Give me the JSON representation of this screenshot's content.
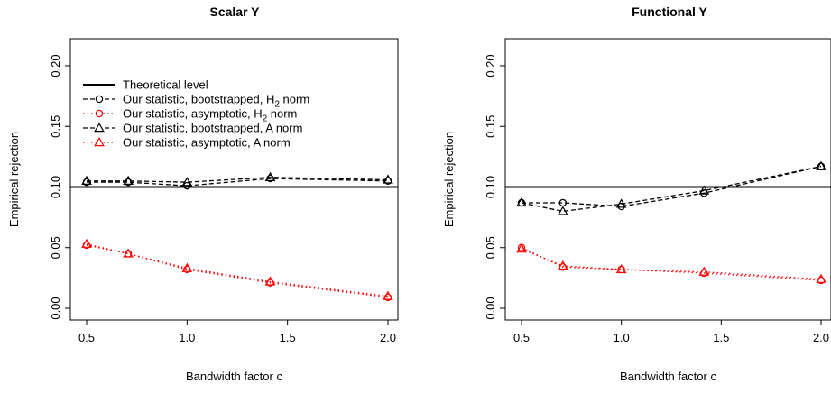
{
  "chart_data": [
    {
      "type": "line",
      "title": "Scalar Y",
      "xlabel": "Bandwidth factor c",
      "ylabel": "Empirical rejection",
      "xlim": [
        0.5,
        2.0
      ],
      "ylim": [
        0.0,
        0.2
      ],
      "xticks": [
        "0.5",
        "1.0",
        "1.5",
        "2.0"
      ],
      "yticks": [
        "0.00",
        "0.05",
        "0.10",
        "0.15",
        "0.20"
      ],
      "reference_line": {
        "name": "Theoretical level",
        "y": 0.1,
        "color": "#000000"
      },
      "legend": {
        "position": "top-left",
        "entries": [
          {
            "text": "Theoretical level",
            "style": "solid",
            "marker": "none",
            "color": "#000000"
          },
          {
            "text": "Our statistic,  bootstrapped,  H",
            "sub": "2",
            "tail": " norm",
            "style": "dashed",
            "marker": "circle",
            "color": "#000000"
          },
          {
            "text": "Our statistic,  asymptotic,  H",
            "sub": "2",
            "tail": " norm",
            "style": "dotted",
            "marker": "circle",
            "color": "#ff0000"
          },
          {
            "text": "Our statistic,  bootstrapped,   A norm",
            "sub": "",
            "tail": "",
            "style": "dashed",
            "marker": "triangle",
            "color": "#000000"
          },
          {
            "text": "Our statistic,  asymptotic,  A norm",
            "sub": "",
            "tail": "",
            "style": "dotted",
            "marker": "triangle",
            "color": "#ff0000"
          }
        ]
      },
      "x": [
        0.5,
        0.707,
        1.0,
        1.414,
        2.0
      ],
      "series": [
        {
          "name": "Our statistic, bootstrapped, H2 norm",
          "values": [
            0.104,
            0.104,
            0.101,
            0.107,
            0.105
          ],
          "style": "dashed",
          "marker": "circle",
          "color": "#000000"
        },
        {
          "name": "Our statistic, asymptotic, H2 norm",
          "values": [
            0.052,
            0.045,
            0.032,
            0.021,
            0.009
          ],
          "style": "dotted",
          "marker": "circle",
          "color": "#ff0000"
        },
        {
          "name": "Our statistic, bootstrapped, A norm",
          "values": [
            0.105,
            0.105,
            0.104,
            0.108,
            0.106
          ],
          "style": "dashed",
          "marker": "triangle",
          "color": "#000000"
        },
        {
          "name": "Our statistic, asymptotic, A norm",
          "values": [
            0.053,
            0.045,
            0.033,
            0.022,
            0.01
          ],
          "style": "dotted",
          "marker": "triangle",
          "color": "#ff0000"
        }
      ]
    },
    {
      "type": "line",
      "title": "Functional Y",
      "xlabel": "Bandwidth factor c",
      "ylabel": "Empirical rejection",
      "xlim": [
        0.5,
        2.0
      ],
      "ylim": [
        0.0,
        0.2
      ],
      "xticks": [
        "0.5",
        "1.0",
        "1.5",
        "2.0"
      ],
      "yticks": [
        "0.00",
        "0.05",
        "0.10",
        "0.15",
        "0.20"
      ],
      "reference_line": {
        "name": "Theoretical level",
        "y": 0.1,
        "color": "#000000"
      },
      "x": [
        0.5,
        0.707,
        1.0,
        1.414,
        2.0
      ],
      "series": [
        {
          "name": "Our statistic, bootstrapped, H2 norm",
          "values": [
            0.087,
            0.087,
            0.084,
            0.095,
            0.117
          ],
          "style": "dashed",
          "marker": "circle",
          "color": "#000000"
        },
        {
          "name": "Our statistic, asymptotic, H2 norm",
          "values": [
            0.05,
            0.034,
            0.032,
            0.029,
            0.023
          ],
          "style": "dotted",
          "marker": "circle",
          "color": "#ff0000"
        },
        {
          "name": "Our statistic, bootstrapped, A norm",
          "values": [
            0.087,
            0.08,
            0.086,
            0.097,
            0.117
          ],
          "style": "dashed",
          "marker": "triangle",
          "color": "#000000"
        },
        {
          "name": "Our statistic, asymptotic, A norm",
          "values": [
            0.049,
            0.035,
            0.032,
            0.03,
            0.024
          ],
          "style": "dotted",
          "marker": "triangle",
          "color": "#ff0000"
        }
      ]
    }
  ]
}
